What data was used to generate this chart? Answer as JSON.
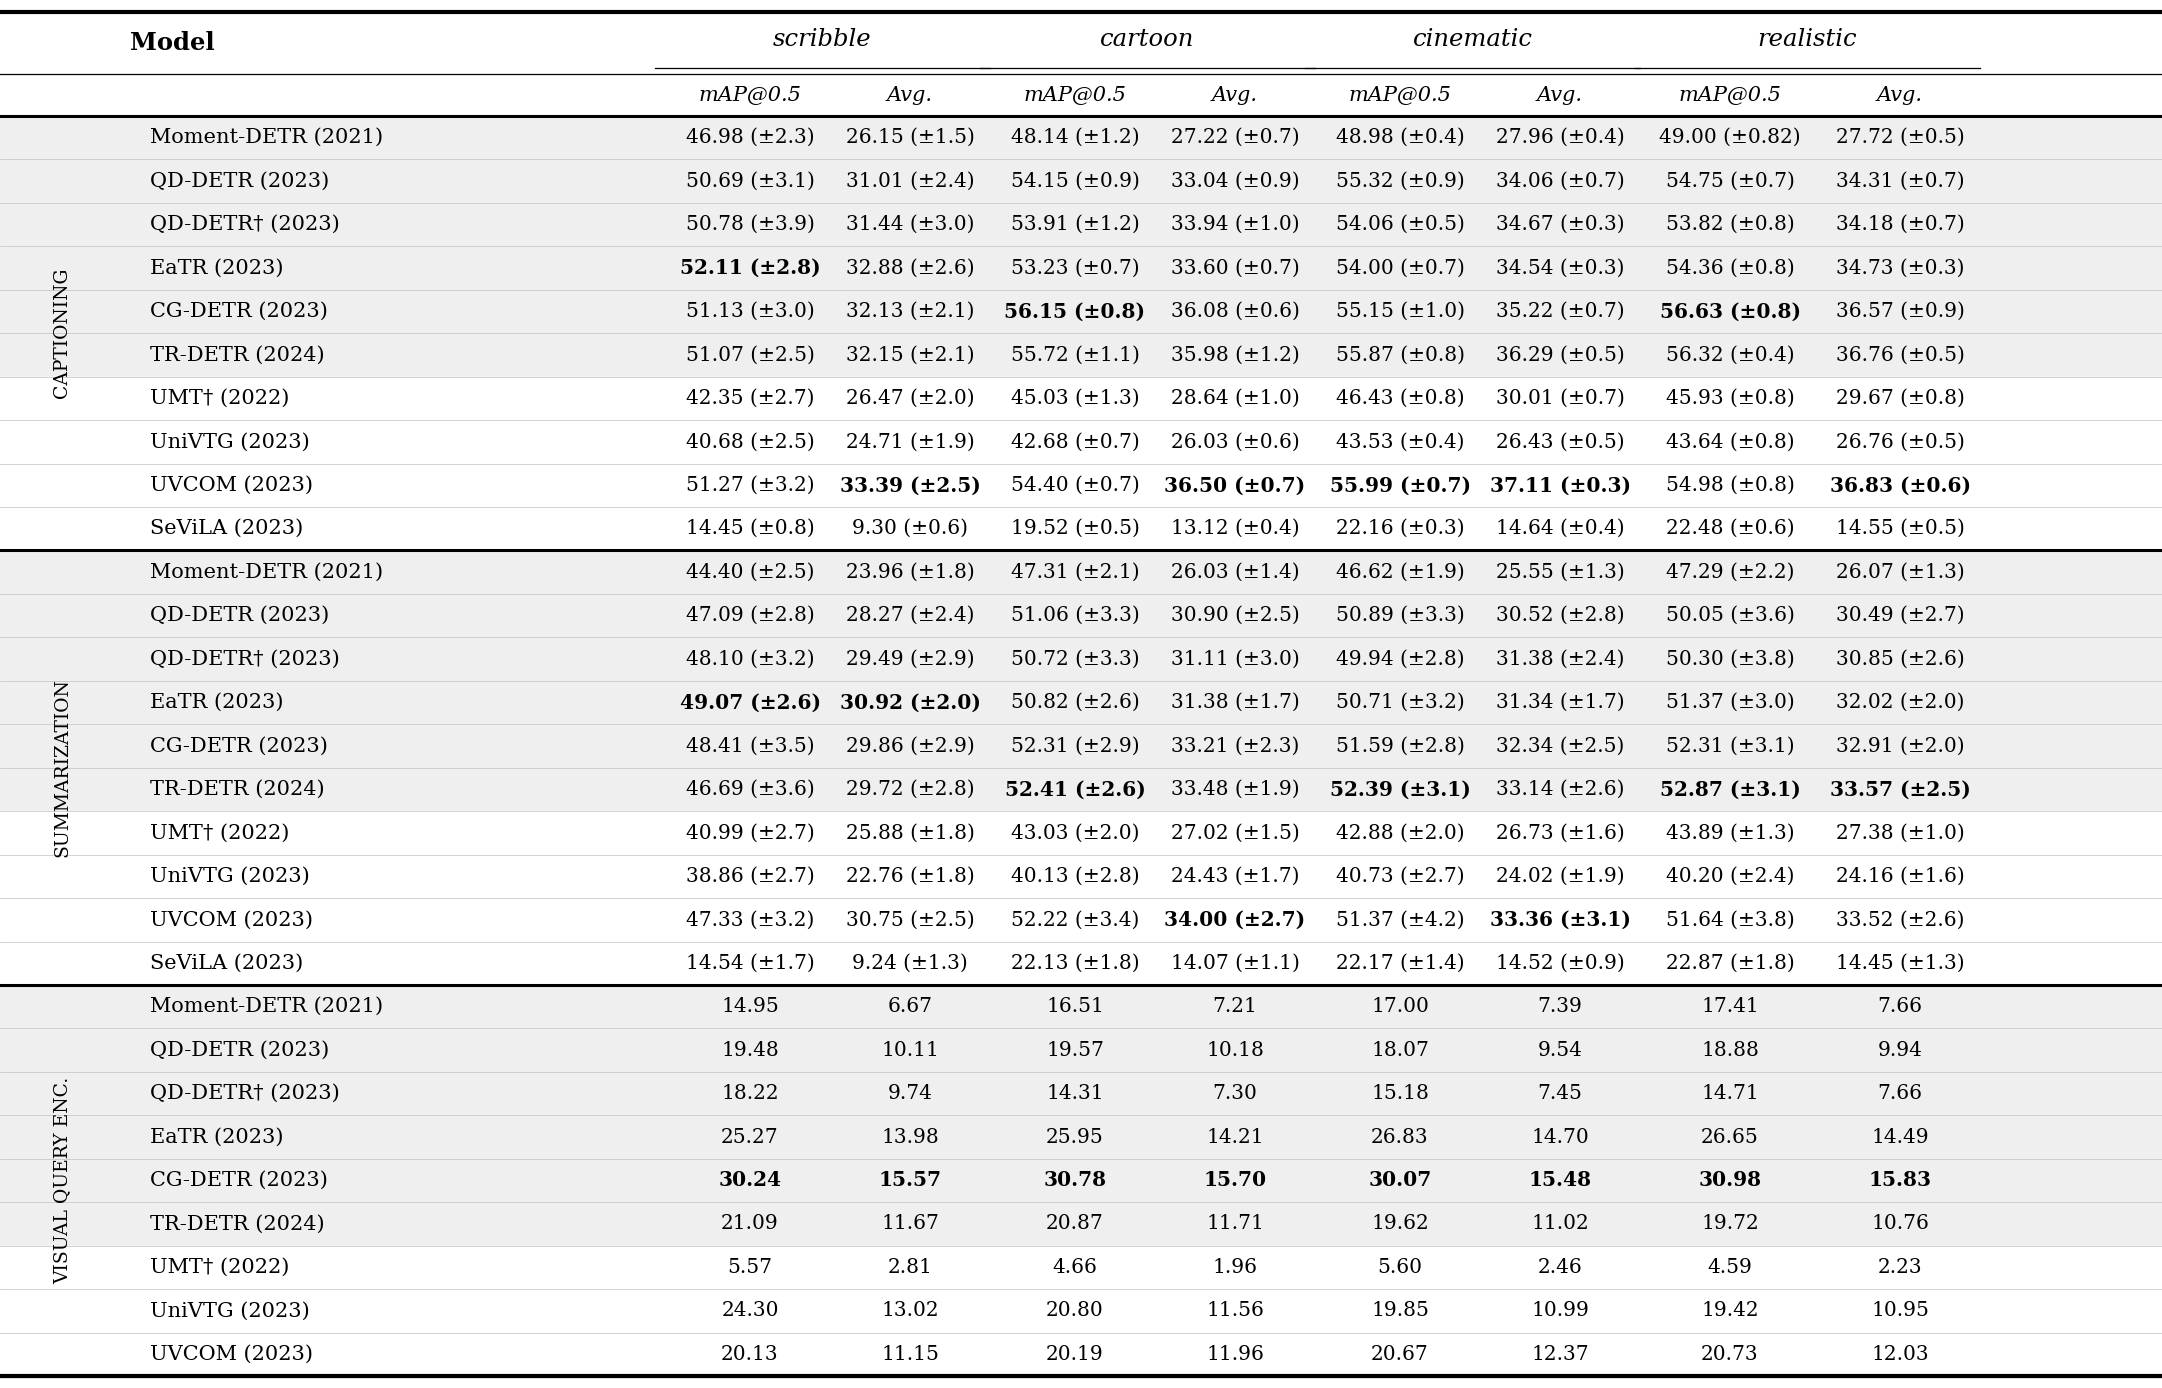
{
  "sections": [
    {
      "label": "Captioning",
      "rows": [
        {
          "model": "Moment-DETR (2021)",
          "scrib_map": "46.98 (±2.3)",
          "scrib_avg": "26.15 (±1.5)",
          "cart_map": "48.14 (±1.2)",
          "cart_avg": "27.22 (±0.7)",
          "cine_map": "48.98 (±0.4)",
          "cine_avg": "27.96 (±0.4)",
          "real_map": "49.00 (±0.82)",
          "real_avg": "27.72 (±0.5)",
          "bold": [],
          "shaded": true
        },
        {
          "model": "QD-DETR (2023)",
          "scrib_map": "50.69 (±3.1)",
          "scrib_avg": "31.01 (±2.4)",
          "cart_map": "54.15 (±0.9)",
          "cart_avg": "33.04 (±0.9)",
          "cine_map": "55.32 (±0.9)",
          "cine_avg": "34.06 (±0.7)",
          "real_map": "54.75 (±0.7)",
          "real_avg": "34.31 (±0.7)",
          "bold": [],
          "shaded": true
        },
        {
          "model": "QD-DETR† (2023)",
          "scrib_map": "50.78 (±3.9)",
          "scrib_avg": "31.44 (±3.0)",
          "cart_map": "53.91 (±1.2)",
          "cart_avg": "33.94 (±1.0)",
          "cine_map": "54.06 (±0.5)",
          "cine_avg": "34.67 (±0.3)",
          "real_map": "53.82 (±0.8)",
          "real_avg": "34.18 (±0.7)",
          "bold": [],
          "shaded": true
        },
        {
          "model": "EaTR (2023)",
          "scrib_map": "52.11 (±2.8)",
          "scrib_avg": "32.88 (±2.6)",
          "cart_map": "53.23 (±0.7)",
          "cart_avg": "33.60 (±0.7)",
          "cine_map": "54.00 (±0.7)",
          "cine_avg": "34.54 (±0.3)",
          "real_map": "54.36 (±0.8)",
          "real_avg": "34.73 (±0.3)",
          "bold": [
            "scrib_map"
          ],
          "shaded": true
        },
        {
          "model": "CG-DETR (2023)",
          "scrib_map": "51.13 (±3.0)",
          "scrib_avg": "32.13 (±2.1)",
          "cart_map": "56.15 (±0.8)",
          "cart_avg": "36.08 (±0.6)",
          "cine_map": "55.15 (±1.0)",
          "cine_avg": "35.22 (±0.7)",
          "real_map": "56.63 (±0.8)",
          "real_avg": "36.57 (±0.9)",
          "bold": [
            "cart_map",
            "real_map"
          ],
          "shaded": true
        },
        {
          "model": "TR-DETR (2024)",
          "scrib_map": "51.07 (±2.5)",
          "scrib_avg": "32.15 (±2.1)",
          "cart_map": "55.72 (±1.1)",
          "cart_avg": "35.98 (±1.2)",
          "cine_map": "55.87 (±0.8)",
          "cine_avg": "36.29 (±0.5)",
          "real_map": "56.32 (±0.4)",
          "real_avg": "36.76 (±0.5)",
          "bold": [],
          "shaded": true
        },
        {
          "model": "UMT† (2022)",
          "scrib_map": "42.35 (±2.7)",
          "scrib_avg": "26.47 (±2.0)",
          "cart_map": "45.03 (±1.3)",
          "cart_avg": "28.64 (±1.0)",
          "cine_map": "46.43 (±0.8)",
          "cine_avg": "30.01 (±0.7)",
          "real_map": "45.93 (±0.8)",
          "real_avg": "29.67 (±0.8)",
          "bold": [],
          "shaded": false
        },
        {
          "model": "UniVTG (2023)",
          "scrib_map": "40.68 (±2.5)",
          "scrib_avg": "24.71 (±1.9)",
          "cart_map": "42.68 (±0.7)",
          "cart_avg": "26.03 (±0.6)",
          "cine_map": "43.53 (±0.4)",
          "cine_avg": "26.43 (±0.5)",
          "real_map": "43.64 (±0.8)",
          "real_avg": "26.76 (±0.5)",
          "bold": [],
          "shaded": false
        },
        {
          "model": "UVCOM (2023)",
          "scrib_map": "51.27 (±3.2)",
          "scrib_avg": "33.39 (±2.5)",
          "cart_map": "54.40 (±0.7)",
          "cart_avg": "36.50 (±0.7)",
          "cine_map": "55.99 (±0.7)",
          "cine_avg": "37.11 (±0.3)",
          "real_map": "54.98 (±0.8)",
          "real_avg": "36.83 (±0.6)",
          "bold": [
            "scrib_avg",
            "cart_avg",
            "cine_map",
            "cine_avg",
            "real_avg"
          ],
          "shaded": false
        },
        {
          "model": "SeViLA (2023)",
          "scrib_map": "14.45 (±0.8)",
          "scrib_avg": "9.30 (±0.6)",
          "cart_map": "19.52 (±0.5)",
          "cart_avg": "13.12 (±0.4)",
          "cine_map": "22.16 (±0.3)",
          "cine_avg": "14.64 (±0.4)",
          "real_map": "22.48 (±0.6)",
          "real_avg": "14.55 (±0.5)",
          "bold": [],
          "shaded": false
        }
      ]
    },
    {
      "label": "Summarization",
      "rows": [
        {
          "model": "Moment-DETR (2021)",
          "scrib_map": "44.40 (±2.5)",
          "scrib_avg": "23.96 (±1.8)",
          "cart_map": "47.31 (±2.1)",
          "cart_avg": "26.03 (±1.4)",
          "cine_map": "46.62 (±1.9)",
          "cine_avg": "25.55 (±1.3)",
          "real_map": "47.29 (±2.2)",
          "real_avg": "26.07 (±1.3)",
          "bold": [],
          "shaded": true
        },
        {
          "model": "QD-DETR (2023)",
          "scrib_map": "47.09 (±2.8)",
          "scrib_avg": "28.27 (±2.4)",
          "cart_map": "51.06 (±3.3)",
          "cart_avg": "30.90 (±2.5)",
          "cine_map": "50.89 (±3.3)",
          "cine_avg": "30.52 (±2.8)",
          "real_map": "50.05 (±3.6)",
          "real_avg": "30.49 (±2.7)",
          "bold": [],
          "shaded": true
        },
        {
          "model": "QD-DETR† (2023)",
          "scrib_map": "48.10 (±3.2)",
          "scrib_avg": "29.49 (±2.9)",
          "cart_map": "50.72 (±3.3)",
          "cart_avg": "31.11 (±3.0)",
          "cine_map": "49.94 (±2.8)",
          "cine_avg": "31.38 (±2.4)",
          "real_map": "50.30 (±3.8)",
          "real_avg": "30.85 (±2.6)",
          "bold": [],
          "shaded": true
        },
        {
          "model": "EaTR (2023)",
          "scrib_map": "49.07 (±2.6)",
          "scrib_avg": "30.92 (±2.0)",
          "cart_map": "50.82 (±2.6)",
          "cart_avg": "31.38 (±1.7)",
          "cine_map": "50.71 (±3.2)",
          "cine_avg": "31.34 (±1.7)",
          "real_map": "51.37 (±3.0)",
          "real_avg": "32.02 (±2.0)",
          "bold": [
            "scrib_map",
            "scrib_avg"
          ],
          "shaded": true
        },
        {
          "model": "CG-DETR (2023)",
          "scrib_map": "48.41 (±3.5)",
          "scrib_avg": "29.86 (±2.9)",
          "cart_map": "52.31 (±2.9)",
          "cart_avg": "33.21 (±2.3)",
          "cine_map": "51.59 (±2.8)",
          "cine_avg": "32.34 (±2.5)",
          "real_map": "52.31 (±3.1)",
          "real_avg": "32.91 (±2.0)",
          "bold": [],
          "shaded": true
        },
        {
          "model": "TR-DETR (2024)",
          "scrib_map": "46.69 (±3.6)",
          "scrib_avg": "29.72 (±2.8)",
          "cart_map": "52.41 (±2.6)",
          "cart_avg": "33.48 (±1.9)",
          "cine_map": "52.39 (±3.1)",
          "cine_avg": "33.14 (±2.6)",
          "real_map": "52.87 (±3.1)",
          "real_avg": "33.57 (±2.5)",
          "bold": [
            "cart_map",
            "cine_map",
            "real_map",
            "real_avg"
          ],
          "shaded": true
        },
        {
          "model": "UMT† (2022)",
          "scrib_map": "40.99 (±2.7)",
          "scrib_avg": "25.88 (±1.8)",
          "cart_map": "43.03 (±2.0)",
          "cart_avg": "27.02 (±1.5)",
          "cine_map": "42.88 (±2.0)",
          "cine_avg": "26.73 (±1.6)",
          "real_map": "43.89 (±1.3)",
          "real_avg": "27.38 (±1.0)",
          "bold": [],
          "shaded": false
        },
        {
          "model": "UniVTG (2023)",
          "scrib_map": "38.86 (±2.7)",
          "scrib_avg": "22.76 (±1.8)",
          "cart_map": "40.13 (±2.8)",
          "cart_avg": "24.43 (±1.7)",
          "cine_map": "40.73 (±2.7)",
          "cine_avg": "24.02 (±1.9)",
          "real_map": "40.20 (±2.4)",
          "real_avg": "24.16 (±1.6)",
          "bold": [],
          "shaded": false
        },
        {
          "model": "UVCOM (2023)",
          "scrib_map": "47.33 (±3.2)",
          "scrib_avg": "30.75 (±2.5)",
          "cart_map": "52.22 (±3.4)",
          "cart_avg": "34.00 (±2.7)",
          "cine_map": "51.37 (±4.2)",
          "cine_avg": "33.36 (±3.1)",
          "real_map": "51.64 (±3.8)",
          "real_avg": "33.52 (±2.6)",
          "bold": [
            "cart_avg",
            "cine_avg"
          ],
          "shaded": false
        },
        {
          "model": "SeViLA (2023)",
          "scrib_map": "14.54 (±1.7)",
          "scrib_avg": "9.24 (±1.3)",
          "cart_map": "22.13 (±1.8)",
          "cart_avg": "14.07 (±1.1)",
          "cine_map": "22.17 (±1.4)",
          "cine_avg": "14.52 (±0.9)",
          "real_map": "22.87 (±1.8)",
          "real_avg": "14.45 (±1.3)",
          "bold": [],
          "shaded": false
        }
      ]
    },
    {
      "label": "Visual Query Enc.",
      "rows": [
        {
          "model": "Moment-DETR (2021)",
          "scrib_map": "14.95",
          "scrib_avg": "6.67",
          "cart_map": "16.51",
          "cart_avg": "7.21",
          "cine_map": "17.00",
          "cine_avg": "7.39",
          "real_map": "17.41",
          "real_avg": "7.66",
          "bold": [],
          "shaded": true
        },
        {
          "model": "QD-DETR (2023)",
          "scrib_map": "19.48",
          "scrib_avg": "10.11",
          "cart_map": "19.57",
          "cart_avg": "10.18",
          "cine_map": "18.07",
          "cine_avg": "9.54",
          "real_map": "18.88",
          "real_avg": "9.94",
          "bold": [],
          "shaded": true
        },
        {
          "model": "QD-DETR† (2023)",
          "scrib_map": "18.22",
          "scrib_avg": "9.74",
          "cart_map": "14.31",
          "cart_avg": "7.30",
          "cine_map": "15.18",
          "cine_avg": "7.45",
          "real_map": "14.71",
          "real_avg": "7.66",
          "bold": [],
          "shaded": true
        },
        {
          "model": "EaTR (2023)",
          "scrib_map": "25.27",
          "scrib_avg": "13.98",
          "cart_map": "25.95",
          "cart_avg": "14.21",
          "cine_map": "26.83",
          "cine_avg": "14.70",
          "real_map": "26.65",
          "real_avg": "14.49",
          "bold": [],
          "shaded": true
        },
        {
          "model": "CG-DETR (2023)",
          "scrib_map": "30.24",
          "scrib_avg": "15.57",
          "cart_map": "30.78",
          "cart_avg": "15.70",
          "cine_map": "30.07",
          "cine_avg": "15.48",
          "real_map": "30.98",
          "real_avg": "15.83",
          "bold": [
            "scrib_map",
            "scrib_avg",
            "cart_map",
            "cart_avg",
            "cine_map",
            "cine_avg",
            "real_map",
            "real_avg"
          ],
          "shaded": true
        },
        {
          "model": "TR-DETR (2024)",
          "scrib_map": "21.09",
          "scrib_avg": "11.67",
          "cart_map": "20.87",
          "cart_avg": "11.71",
          "cine_map": "19.62",
          "cine_avg": "11.02",
          "real_map": "19.72",
          "real_avg": "10.76",
          "bold": [],
          "shaded": true
        },
        {
          "model": "UMT† (2022)",
          "scrib_map": "5.57",
          "scrib_avg": "2.81",
          "cart_map": "4.66",
          "cart_avg": "1.96",
          "cine_map": "5.60",
          "cine_avg": "2.46",
          "real_map": "4.59",
          "real_avg": "2.23",
          "bold": [],
          "shaded": false
        },
        {
          "model": "UniVTG (2023)",
          "scrib_map": "24.30",
          "scrib_avg": "13.02",
          "cart_map": "20.80",
          "cart_avg": "11.56",
          "cine_map": "19.85",
          "cine_avg": "10.99",
          "real_map": "19.42",
          "real_avg": "10.95",
          "bold": [],
          "shaded": false
        },
        {
          "model": "UVCOM (2023)",
          "scrib_map": "20.13",
          "scrib_avg": "11.15",
          "cart_map": "20.19",
          "cart_avg": "11.96",
          "cine_map": "20.67",
          "cine_avg": "12.37",
          "real_map": "20.73",
          "real_avg": "12.03",
          "bold": [],
          "shaded": false
        }
      ]
    }
  ],
  "group_labels": [
    "scribble",
    "cartoon",
    "cinematic",
    "realistic"
  ],
  "sub_labels": [
    "mAP@0.5",
    "Avg.",
    "mAP@0.5",
    "Avg.",
    "mAP@0.5",
    "Avg.",
    "mAP@0.5",
    "Avg."
  ],
  "bg_shaded": "#efefef",
  "bg_white": "#ffffff",
  "section_label_displays": [
    "Captioning",
    "Summarization",
    "Visual Query Enc."
  ]
}
